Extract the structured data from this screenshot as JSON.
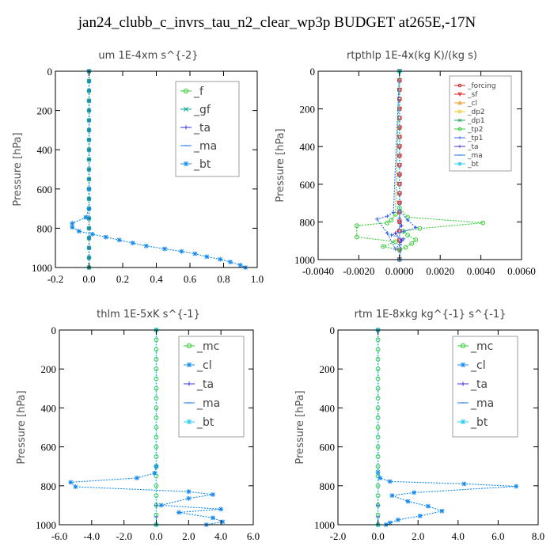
{
  "title": "jan24_clubb_c_invrs_tau_n2_clear_wp3p  BUDGET at265E,-17N",
  "chart_data": [
    {
      "type": "line",
      "title": "um   1E-4xm s^{-2}",
      "ylabel": "Pressure [hPa]",
      "xlim": [
        -0.2,
        1.0
      ],
      "ylim": [
        1000,
        0
      ],
      "xticks": [
        "-0.2",
        "0.0",
        "0.2",
        "0.4",
        "0.6",
        "0.8",
        "1.0"
      ],
      "xtick_values": [
        -0.2,
        0.0,
        0.2,
        0.4,
        0.6,
        0.8,
        1.0
      ],
      "yticks": [
        "0",
        "200",
        "400",
        "600",
        "800",
        "1000"
      ],
      "ytick_values": [
        0,
        200,
        400,
        600,
        800,
        1000
      ],
      "legend_placement": "top-right",
      "series": [
        {
          "name": "_f",
          "color": "#33cc33",
          "marker": "circle",
          "x": [
            0,
            0,
            0,
            0,
            0,
            0,
            0,
            0,
            0,
            0,
            0,
            0,
            0,
            0,
            0,
            0,
            0,
            0,
            0,
            0,
            0
          ],
          "y": [
            0,
            50,
            100,
            150,
            200,
            250,
            300,
            350,
            400,
            450,
            500,
            550,
            600,
            650,
            700,
            750,
            800,
            850,
            900,
            950,
            1000
          ]
        },
        {
          "name": "_gf",
          "color": "#00a89c",
          "marker": "x",
          "x": [
            0,
            0,
            0,
            0,
            0,
            0,
            0,
            0,
            0,
            0,
            0,
            0,
            0,
            0,
            0,
            0,
            0,
            0,
            0,
            0,
            0
          ],
          "y": [
            0,
            50,
            100,
            150,
            200,
            250,
            300,
            350,
            400,
            450,
            500,
            550,
            600,
            650,
            700,
            750,
            800,
            850,
            900,
            950,
            1000
          ]
        },
        {
          "name": "_ta",
          "color": "#3333dd",
          "marker": "plus",
          "x": [
            0,
            0,
            0,
            0,
            0,
            0,
            0,
            0,
            0,
            0,
            0,
            0,
            0,
            0,
            0,
            0,
            0,
            0,
            0,
            0,
            0
          ],
          "y": [
            0,
            50,
            100,
            150,
            200,
            250,
            300,
            350,
            400,
            450,
            500,
            550,
            600,
            650,
            700,
            750,
            800,
            850,
            900,
            950,
            1000
          ]
        },
        {
          "name": "_ma",
          "color": "#2277dd",
          "marker": "dash",
          "x": [
            0,
            0,
            0,
            0,
            0,
            0,
            0,
            0,
            0,
            0,
            0,
            0,
            0,
            0,
            0,
            0,
            0,
            0,
            0,
            0,
            0
          ],
          "y": [
            0,
            50,
            100,
            150,
            200,
            250,
            300,
            350,
            400,
            450,
            500,
            550,
            600,
            650,
            700,
            750,
            800,
            850,
            900,
            950,
            1000
          ]
        },
        {
          "name": "_bt",
          "color": "#1188ee",
          "marker": "star",
          "x": [
            0,
            0,
            0,
            -0.02,
            -0.1,
            -0.1,
            -0.06,
            0.02,
            0.1,
            0.18,
            0.26,
            0.34,
            0.45,
            0.55,
            0.63,
            0.7,
            0.78,
            0.84,
            0.9,
            0.93
          ],
          "y": [
            0,
            600,
            700,
            745,
            775,
            795,
            815,
            830,
            845,
            860,
            875,
            890,
            905,
            918,
            930,
            945,
            958,
            972,
            988,
            1000
          ]
        }
      ]
    },
    {
      "type": "line",
      "title": "rtpthlp   1E-4x(kg K)/(kg s)",
      "ylabel": "Pressure [hPa]",
      "xlim": [
        -0.004,
        0.006
      ],
      "ylim": [
        1000,
        0
      ],
      "xticks": [
        "-0.0040",
        "-0.0020",
        "0.0000",
        "0.0020",
        "0.0040",
        "0.0060"
      ],
      "xtick_values": [
        -0.004,
        -0.002,
        0,
        0.002,
        0.004,
        0.006
      ],
      "yticks": [
        "0",
        "200",
        "400",
        "600",
        "800",
        "1000"
      ],
      "ytick_values": [
        0,
        200,
        400,
        600,
        800,
        1000
      ],
      "legend_placement": "top-right",
      "series": [
        {
          "name": "_forcing",
          "color": "#cc2222",
          "marker": "circle",
          "x": [
            0,
            0,
            0,
            0,
            0,
            0,
            0,
            0,
            0,
            0,
            0,
            0,
            0,
            0,
            0,
            0,
            0,
            0,
            0,
            0,
            0
          ],
          "y": [
            0,
            50,
            100,
            150,
            200,
            250,
            300,
            350,
            400,
            450,
            500,
            550,
            600,
            650,
            700,
            750,
            800,
            850,
            900,
            950,
            1000
          ]
        },
        {
          "name": "_sf",
          "color": "#ee2222",
          "marker": "triangle-down",
          "x": [
            0,
            0,
            0,
            0,
            0,
            0,
            0,
            0,
            0,
            0,
            0,
            0,
            0,
            0,
            0,
            0,
            0,
            0,
            0,
            0,
            0
          ],
          "y": [
            0,
            50,
            100,
            150,
            200,
            250,
            300,
            350,
            400,
            450,
            500,
            550,
            600,
            650,
            700,
            750,
            800,
            850,
            900,
            950,
            1000
          ]
        },
        {
          "name": "_cl",
          "color": "#ee9922",
          "marker": "triangle",
          "x": [],
          "y": []
        },
        {
          "name": "_dp2",
          "color": "#eecc22",
          "marker": "circle",
          "x": [],
          "y": []
        },
        {
          "name": "_dp1",
          "color": "#22aa55",
          "marker": "x",
          "x": [],
          "y": []
        },
        {
          "name": "_tp2",
          "color": "#33cc33",
          "marker": "circle",
          "x": [
            0,
            0,
            0.0004,
            0.0041,
            0.001,
            0.0002,
            0.0004,
            0.0008,
            0.0006,
            0.0003,
            0,
            -0.0008,
            -0.0002,
            -0.0021,
            -0.0021,
            -0.0006,
            -0.0004,
            -0.0002,
            0
          ],
          "y": [
            0,
            725,
            775,
            805,
            835,
            850,
            870,
            895,
            915,
            935,
            950,
            930,
            905,
            880,
            820,
            805,
            790,
            760,
            0
          ]
        },
        {
          "name": "_tp1",
          "color": "#3366ee",
          "marker": "plus",
          "x": [
            0,
            0,
            0.0004,
            0.0008,
            0.0002,
            -0.0004,
            0.0002,
            0,
            -0.0002,
            -0.0006,
            -0.0011,
            -0.0006,
            -0.0003,
            0
          ],
          "y": [
            0,
            740,
            790,
            830,
            850,
            870,
            890,
            920,
            945,
            860,
            785,
            770,
            750,
            0
          ]
        },
        {
          "name": "_ta",
          "color": "#4433cc",
          "marker": "plus",
          "x": [
            0,
            0,
            0.0001,
            -0.0002,
            0.0001,
            0
          ],
          "y": [
            0,
            780,
            820,
            860,
            900,
            1000
          ]
        },
        {
          "name": "_ma",
          "color": "#2277dd",
          "marker": "dash",
          "x": [
            0,
            0
          ],
          "y": [
            0,
            1000
          ]
        },
        {
          "name": "_bt",
          "color": "#22ccee",
          "marker": "star",
          "x": [
            0,
            0
          ],
          "y": [
            0,
            1000
          ]
        }
      ]
    },
    {
      "type": "line",
      "title": "thlm   1E-5xK s^{-1}",
      "ylabel": "Pressure [hPa]",
      "xlim": [
        -6.0,
        6.0
      ],
      "ylim": [
        1000,
        0
      ],
      "xticks": [
        "-6.0",
        "-4.0",
        "-2.0",
        "0.0",
        "2.0",
        "4.0",
        "6.0"
      ],
      "xtick_values": [
        -6,
        -4,
        -2,
        0,
        2,
        4,
        6
      ],
      "yticks": [
        "0",
        "200",
        "400",
        "600",
        "800",
        "1000"
      ],
      "ytick_values": [
        0,
        200,
        400,
        600,
        800,
        1000
      ],
      "legend_placement": "top-right",
      "series": [
        {
          "name": "_mc",
          "color": "#33cc33",
          "marker": "circle",
          "x": [
            0,
            0,
            0,
            0,
            0,
            0,
            0,
            0,
            0,
            0,
            0,
            0,
            0,
            0,
            0,
            0,
            0,
            0,
            0,
            0,
            0
          ],
          "y": [
            0,
            50,
            100,
            150,
            200,
            250,
            300,
            350,
            400,
            450,
            500,
            550,
            600,
            650,
            700,
            750,
            800,
            850,
            900,
            950,
            1000
          ]
        },
        {
          "name": "_cl",
          "color": "#1188ee",
          "marker": "star",
          "x": [
            0,
            0,
            -0.1,
            -1.2,
            -5.3,
            -5.0,
            2.0,
            3.5,
            2.0,
            0.3,
            4.0,
            1.4,
            3.5,
            4.1,
            3.1
          ],
          "y": [
            0,
            700,
            735,
            760,
            782,
            805,
            830,
            845,
            865,
            900,
            920,
            937,
            965,
            985,
            1000
          ]
        },
        {
          "name": "_ta",
          "color": "#3333dd",
          "marker": "plus",
          "x": [
            0,
            0,
            0,
            0
          ],
          "y": [
            0,
            900,
            960,
            1000
          ]
        },
        {
          "name": "_ma",
          "color": "#2277dd",
          "marker": "dash",
          "x": [
            0,
            0
          ],
          "y": [
            0,
            1000
          ]
        },
        {
          "name": "_bt",
          "color": "#22ccee",
          "marker": "star",
          "x": [
            0,
            0
          ],
          "y": [
            0,
            1000
          ]
        }
      ]
    },
    {
      "type": "line",
      "title": "rtm   1E-8xkg kg^{-1} s^{-1}",
      "ylabel": "Pressure [hPa]",
      "xlim": [
        -2.0,
        8.0
      ],
      "ylim": [
        1000,
        0
      ],
      "xticks": [
        "-2.0",
        "0.0",
        "2.0",
        "4.0",
        "6.0",
        "8.0"
      ],
      "xtick_values": [
        -2,
        0,
        2,
        4,
        6,
        8
      ],
      "yticks": [
        "0",
        "200",
        "400",
        "600",
        "800",
        "1000"
      ],
      "ytick_values": [
        0,
        200,
        400,
        600,
        800,
        1000
      ],
      "legend_placement": "top-right",
      "series": [
        {
          "name": "_mc",
          "color": "#33cc33",
          "marker": "circle",
          "x": [
            0,
            0,
            0,
            0,
            0,
            0,
            0,
            0,
            0,
            0,
            0,
            0,
            0,
            0,
            0,
            0,
            0,
            0,
            0,
            0,
            0
          ],
          "y": [
            0,
            50,
            100,
            150,
            200,
            250,
            300,
            350,
            400,
            450,
            500,
            550,
            600,
            650,
            700,
            750,
            800,
            850,
            900,
            950,
            1000
          ]
        },
        {
          "name": "_cl",
          "color": "#1188ee",
          "marker": "star",
          "x": [
            0,
            0,
            0.1,
            0.6,
            4.3,
            6.9,
            1.8,
            0.7,
            1.5,
            2.5,
            3.2,
            2.1,
            1.0,
            0.6,
            0.4
          ],
          "y": [
            0,
            730,
            760,
            778,
            790,
            803,
            835,
            850,
            880,
            905,
            930,
            955,
            975,
            990,
            1000
          ]
        },
        {
          "name": "_ta",
          "color": "#3333dd",
          "marker": "plus",
          "x": [
            0,
            0,
            0,
            0
          ],
          "y": [
            0,
            900,
            960,
            1000
          ]
        },
        {
          "name": "_ma",
          "color": "#2277dd",
          "marker": "dash",
          "x": [
            0,
            0
          ],
          "y": [
            0,
            1000
          ]
        },
        {
          "name": "_bt",
          "color": "#22ccee",
          "marker": "star",
          "x": [
            0,
            0
          ],
          "y": [
            0,
            1000
          ]
        }
      ]
    }
  ]
}
